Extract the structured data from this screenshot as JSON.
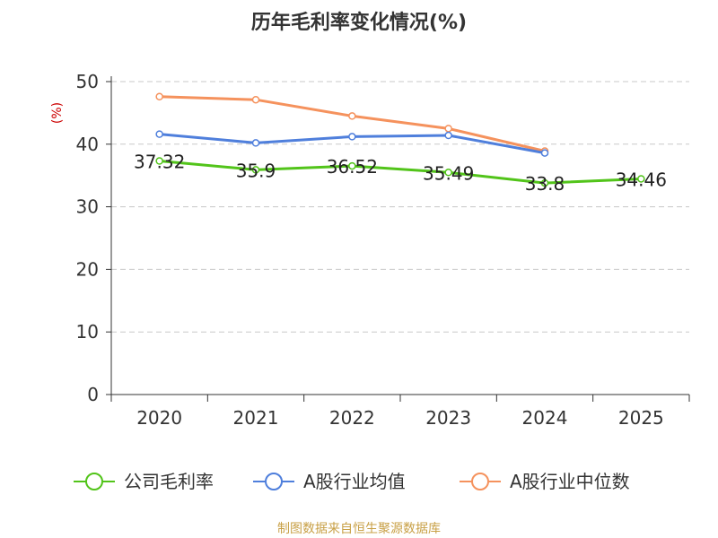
{
  "chart_data": {
    "type": "line",
    "title": "历年毛利率变化情况(%)",
    "ylabel": "(%)",
    "xlabel": "",
    "categories": [
      "2020",
      "2021",
      "2022",
      "2023",
      "2024",
      "2025"
    ],
    "ylim": [
      0,
      50
    ],
    "yticks": [
      0,
      10,
      20,
      30,
      40,
      50
    ],
    "grid": true,
    "legend_position": "bottom",
    "series": [
      {
        "name": "公司毛利率",
        "color": "#52c41a",
        "values": [
          37.32,
          35.9,
          36.52,
          35.49,
          33.8,
          34.46
        ],
        "labels": [
          "37.32",
          "35.9",
          "36.52",
          "35.49",
          "33.8",
          "34.46"
        ]
      },
      {
        "name": "A股行业均值",
        "color": "#4f7fdc",
        "values": [
          41.6,
          40.2,
          41.2,
          41.4,
          38.6,
          null
        ]
      },
      {
        "name": "A股行业中位数",
        "color": "#f5925d",
        "values": [
          47.6,
          47.1,
          44.5,
          42.5,
          38.9,
          null
        ]
      }
    ]
  },
  "footer": {
    "source": "制图数据来自恒生聚源数据库"
  }
}
